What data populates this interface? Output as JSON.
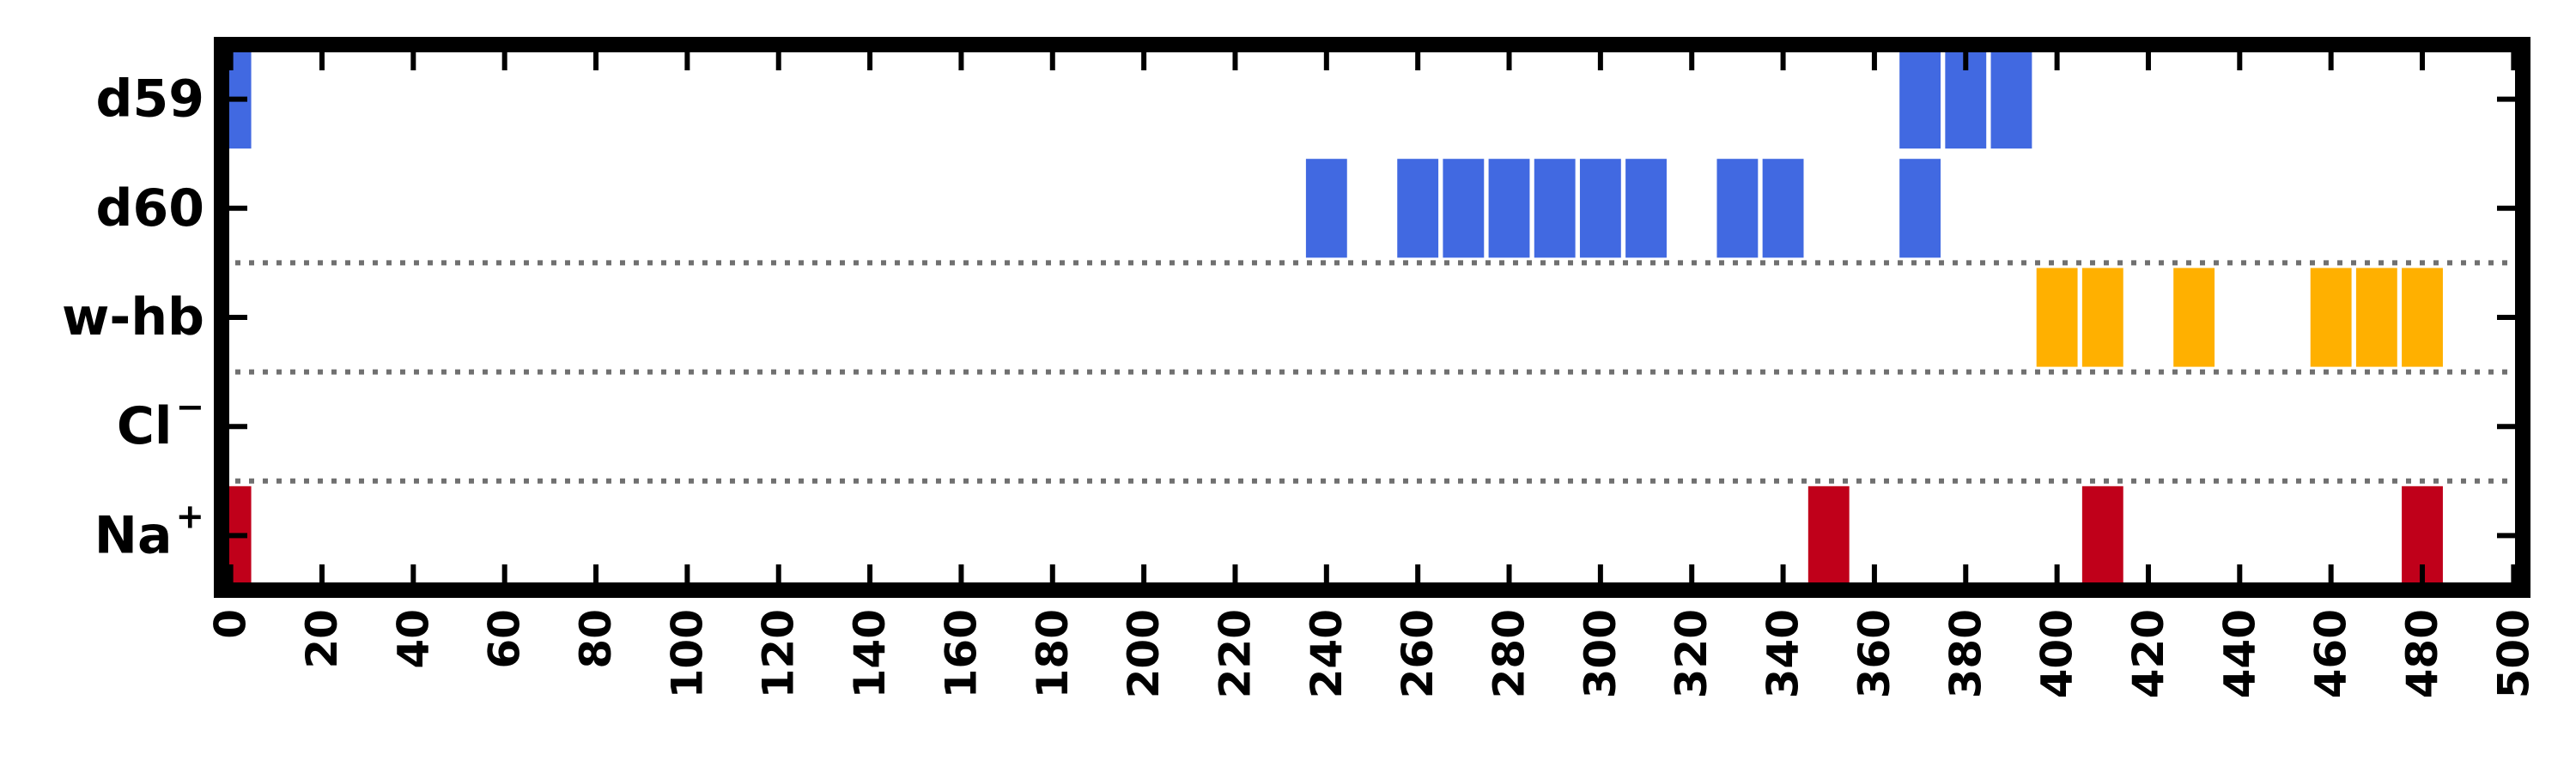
{
  "chart_data": {
    "type": "bar",
    "subtype": "event-raster",
    "title": "",
    "xlabel": "",
    "ylabel": "",
    "xlim": [
      -2,
      502
    ],
    "x_ticks": [
      0,
      20,
      40,
      60,
      80,
      100,
      120,
      140,
      160,
      180,
      200,
      220,
      240,
      260,
      280,
      300,
      320,
      340,
      360,
      380,
      400,
      420,
      440,
      460,
      480,
      500
    ],
    "x_tick_labels": [
      "0",
      "20",
      "40",
      "60",
      "80",
      "100",
      "120",
      "140",
      "160",
      "180",
      "200",
      "220",
      "240",
      "260",
      "280",
      "300",
      "320",
      "340",
      "360",
      "380",
      "400",
      "420",
      "440",
      "460",
      "480",
      "500"
    ],
    "event_width": 9,
    "grid": false,
    "legend": "none",
    "rows": [
      {
        "label": "d59",
        "sup": "",
        "color": "#4169e1",
        "events": [
          0,
          370,
          380,
          390
        ]
      },
      {
        "label": "d60",
        "sup": "",
        "color": "#4169e1",
        "events": [
          240,
          260,
          270,
          280,
          290,
          300,
          310,
          330,
          340,
          370
        ]
      },
      {
        "label": "w-hb",
        "sup": "",
        "color": "#ffb000",
        "events": [
          400,
          410,
          430,
          460,
          470,
          480
        ]
      },
      {
        "label": "Cl",
        "sup": "−",
        "color": "#c0001a",
        "events": []
      },
      {
        "label": "Na",
        "sup": "+",
        "color": "#c0001a",
        "events": [
          0,
          350,
          410,
          480
        ]
      }
    ],
    "separators_after_rows": [
      1,
      2,
      3
    ]
  }
}
